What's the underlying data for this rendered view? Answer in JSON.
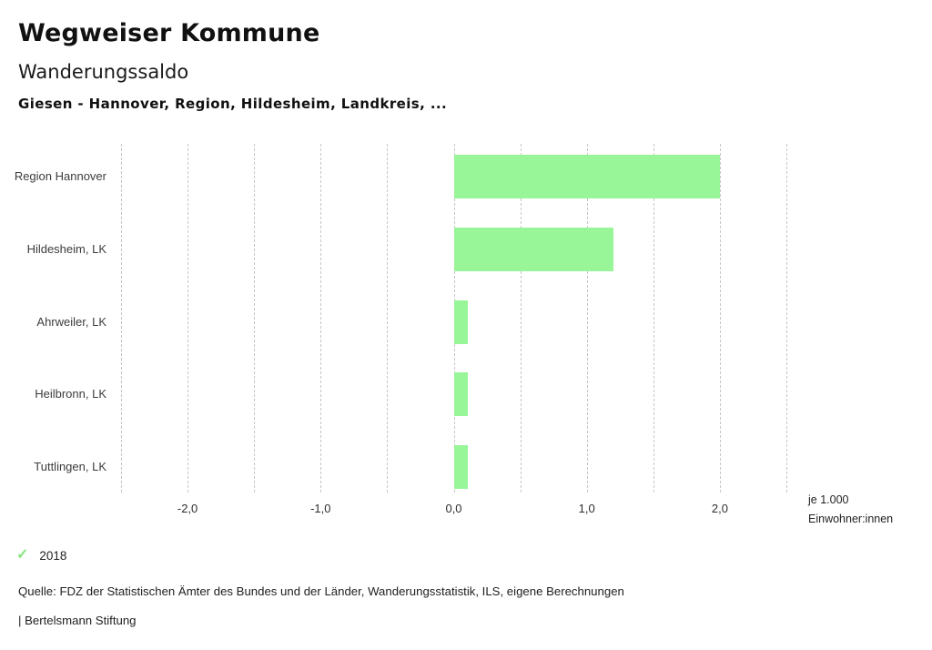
{
  "header": {
    "title": "Wegweiser Kommune",
    "subtitle": "Wanderungssaldo",
    "comparison": "Giesen - Hannover, Region, Hildesheim, Landkreis, ..."
  },
  "chart_data": {
    "type": "bar",
    "orientation": "horizontal",
    "title": "Wanderungssaldo",
    "categories": [
      "Region Hannover",
      "Hildesheim, LK",
      "Ahrweiler, LK",
      "Heilbronn, LK",
      "Tuttlingen, LK"
    ],
    "series": [
      {
        "name": "2018",
        "values": [
          2.0,
          1.2,
          0.1,
          0.1,
          0.1
        ]
      }
    ],
    "xlim": [
      -2.5,
      2.5
    ],
    "grid_step": 0.5,
    "grid": true,
    "x_ticks": [
      {
        "value": -2,
        "label": "-2,0"
      },
      {
        "value": -1,
        "label": "-1,0"
      },
      {
        "value": 0,
        "label": "0,0"
      },
      {
        "value": 1,
        "label": "1,0"
      },
      {
        "value": 2,
        "label": "2,0"
      }
    ],
    "xlabel_lines": [
      "je 1.000",
      "Einwohner:innen"
    ],
    "bar_color": "#98f598",
    "gridline_color": "#c5c5c5",
    "legend_position": "bottom-left"
  },
  "legend": {
    "check_icon": "✓",
    "check_color": "#86e57f",
    "label": "2018"
  },
  "footer": {
    "source": "Quelle: FDZ der Statistischen Ämter des Bundes und der Länder, Wanderungsstatistik, ILS, eigene Berechnungen",
    "attribution": "| Bertelsmann Stiftung"
  }
}
